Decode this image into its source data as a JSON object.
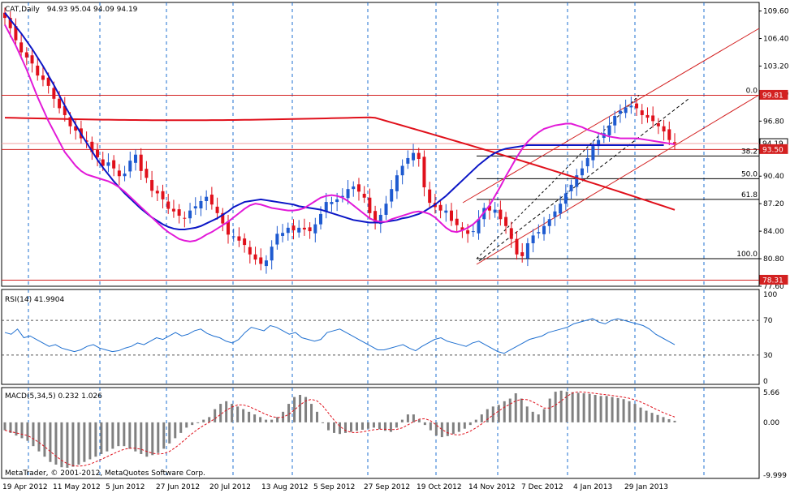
{
  "header": {
    "symbol": "CAT,Daily",
    "ohlc": "94.93 95.04 94.09 94.19"
  },
  "price_axis": {
    "ticks": [
      "109.60",
      "106.40",
      "103.20",
      "100.00",
      "96.80",
      "93.60",
      "90.40",
      "87.20",
      "84.00",
      "80.80",
      "77.60"
    ],
    "tags": [
      {
        "text": "99.81",
        "value": 99.81
      },
      {
        "text": "94.19",
        "value": 94.19
      },
      {
        "text": "93.50",
        "value": 93.5
      },
      {
        "text": "78.31",
        "value": 78.31
      }
    ]
  },
  "fib_levels": [
    {
      "label": "0.0",
      "value": 99.81
    },
    {
      "label": "38.2",
      "value": 92.75
    },
    {
      "label": "50.0",
      "value": 90.1
    },
    {
      "label": "61.8",
      "value": 87.7
    },
    {
      "label": "100.0",
      "value": 80.8
    }
  ],
  "rsi": {
    "label": "RSI(14) 41.9904",
    "ticks": [
      "100",
      "70",
      "30",
      "0"
    ],
    "values": [
      56,
      54,
      60,
      50,
      52,
      48,
      44,
      40,
      42,
      38,
      36,
      34,
      36,
      40,
      42,
      38,
      36,
      34,
      35,
      38,
      40,
      44,
      42,
      46,
      50,
      48,
      52,
      56,
      52,
      54,
      58,
      60,
      55,
      52,
      50,
      46,
      44,
      48,
      56,
      62,
      60,
      58,
      64,
      62,
      58,
      54,
      56,
      50,
      48,
      46,
      48,
      56,
      58,
      60,
      56,
      52,
      48,
      44,
      40,
      36,
      36,
      38,
      40,
      42,
      38,
      35,
      40,
      44,
      48,
      50,
      46,
      44,
      42,
      40,
      44,
      46,
      42,
      38,
      34,
      32,
      36,
      40,
      44,
      48,
      50,
      52,
      56,
      58,
      60,
      62,
      66,
      68,
      70,
      72,
      68,
      66,
      70,
      72,
      70,
      68,
      66,
      64,
      60,
      54,
      50,
      46,
      42
    ]
  },
  "macd": {
    "label": "MACD(5,34,5) 0.232 1.026",
    "ticks": [
      "5.66",
      "0.00",
      "-9.999"
    ],
    "values": [
      -1.5,
      -2,
      -2.5,
      -3,
      -3.5,
      -4.5,
      -5.5,
      -6.5,
      -7.5,
      -8,
      -8.5,
      -8.6,
      -8.4,
      -8,
      -7.5,
      -7,
      -6.5,
      -6,
      -5.5,
      -5,
      -4.5,
      -4.5,
      -5,
      -5.5,
      -6,
      -6.5,
      -6.2,
      -5.8,
      -5,
      -4,
      -3,
      -2,
      -1,
      -0.5,
      0,
      0.5,
      1,
      2.5,
      3.5,
      4,
      3.5,
      3,
      2.5,
      2,
      1.5,
      1,
      0.5,
      0.5,
      1,
      2,
      3.5,
      4.8,
      5.2,
      4.8,
      3.5,
      2,
      0,
      -1.5,
      -2,
      -2.2,
      -2,
      -1.8,
      -1.6,
      -1.4,
      -1.2,
      -1,
      -1.3,
      -1.6,
      -1.8,
      -1,
      0.5,
      1.5,
      1.5,
      0.5,
      -0.5,
      -1.5,
      -2.5,
      -2.8,
      -2.6,
      -2.2,
      -1.8,
      -1.2,
      -0.5,
      0.5,
      1.5,
      2.5,
      3,
      3.3,
      4,
      4.5,
      5.5,
      4.5,
      3,
      2,
      1.5,
      2.5,
      4.5,
      5.8,
      6,
      5.8,
      5.7,
      5.6,
      5.5,
      5.4,
      5.2,
      5,
      5,
      4.8,
      4.6,
      4.4,
      4,
      3.5,
      2.8,
      2.2,
      1.8,
      1.4,
      1,
      0.6,
      0.3
    ]
  },
  "dates": [
    "19 Apr 2012",
    "11 May 2012",
    "5 Jun 2012",
    "27 Jun 2012",
    "20 Jul 2012",
    "13 Aug 2012",
    "5 Sep 2012",
    "27 Sep 2012",
    "19 Oct 2012",
    "14 Nov 2012",
    "7 Dec 2012",
    "4 Jan 2013",
    "29 Jan 2013"
  ],
  "footer": "MetaTrader, © 2001-2012, MetaQuotes Software Corp.",
  "colors": {
    "bull": "#1e5ad0",
    "bear": "#e0101b",
    "ma_fast": "#e219d8",
    "ma_mid": "#0b16c6",
    "ma_slow": "#e0101b",
    "rsi": "#1e6fd0",
    "grid": "#1e6fd0",
    "hline": "#d32020"
  },
  "chart_data": {
    "type": "line",
    "title": "CAT,Daily",
    "close": [
      108.8,
      107.6,
      106.2,
      104.8,
      104.2,
      103.5,
      102.1,
      101.6,
      100.9,
      99.4,
      98.3,
      97.5,
      96.2,
      95.7,
      94.8,
      94.4,
      93.2,
      92.6,
      91.6,
      92.0,
      91.3,
      90.4,
      90.7,
      92.2,
      92.9,
      91.0,
      90.2,
      88.7,
      88.4,
      87.7,
      86.6,
      86.3,
      85.8,
      85.5,
      86.4,
      86.9,
      87.5,
      88.0,
      87.1,
      86.1,
      84.9,
      83.6,
      83.4,
      82.9,
      82.4,
      81.3,
      80.7,
      80.2,
      80.6,
      82.2,
      83.7,
      83.8,
      84.4,
      84.1,
      84.4,
      84.2,
      84.0,
      84.8,
      86.0,
      87.4,
      87.4,
      87.7,
      88.1,
      88.9,
      89.2,
      88.6,
      87.9,
      86.1,
      85.1,
      85.9,
      87.2,
      88.9,
      90.5,
      91.6,
      92.5,
      93.1,
      92.4,
      89.1,
      87.3,
      86.8,
      86.4,
      86.4,
      85.2,
      84.7,
      84.1,
      83.7,
      84.0,
      85.4,
      86.7,
      86.4,
      86.5,
      85.4,
      84.6,
      83.1,
      81.3,
      81.1,
      82.6,
      83.5,
      83.9,
      84.6,
      85.4,
      86.3,
      87.2,
      88.4,
      89.4,
      90.5,
      91.3,
      92.5,
      93.9,
      94.6,
      95.4,
      96.3,
      97.4,
      98.0,
      98.4,
      98.6,
      98.3,
      97.5,
      97.2,
      96.8,
      96.2,
      95.6,
      94.6,
      94.19
    ],
    "ma_fast": [
      108.0,
      106.8,
      105.6,
      104.2,
      102.8,
      101.2,
      99.6,
      98.2,
      96.8,
      95.6,
      94.4,
      93.2,
      92.4,
      91.6,
      91.0,
      90.6,
      90.4,
      90.2,
      90.0,
      89.8,
      89.5,
      89.1,
      88.6,
      88.0,
      87.4,
      86.8,
      86.2,
      85.6,
      85.0,
      84.4,
      83.9,
      83.5,
      83.1,
      82.9,
      82.8,
      82.9,
      83.2,
      83.6,
      83.9,
      84.3,
      84.7,
      85.1,
      85.6,
      86.1,
      86.6,
      87.0,
      87.2,
      87.1,
      86.9,
      86.7,
      86.6,
      86.5,
      86.4,
      86.4,
      86.5,
      86.7,
      87.1,
      87.5,
      87.9,
      88.1,
      88.2,
      88.1,
      87.9,
      87.5,
      87.0,
      86.5,
      86.0,
      85.5,
      85.2,
      85.1,
      85.1,
      85.4,
      85.6,
      85.8,
      86.0,
      86.2,
      86.3,
      86.2,
      86.0,
      85.6,
      85.0,
      84.4,
      84.0,
      83.9,
      84.1,
      84.4,
      84.8,
      85.4,
      86.2,
      87.0,
      88.1,
      89.2,
      90.4,
      91.5,
      92.6,
      93.6,
      94.4,
      95.0,
      95.5,
      95.9,
      96.1,
      96.3,
      96.4,
      96.5,
      96.5,
      96.3,
      96.1,
      95.8,
      95.6,
      95.4,
      95.2,
      95.0,
      94.9,
      94.8,
      94.8,
      94.8,
      94.8,
      94.7,
      94.6,
      94.5,
      94.4,
      94.3,
      94.2,
      94.1
    ],
    "ma_mid": [
      109.4,
      108.6,
      107.8,
      107.0,
      106.1,
      105.2,
      104.2,
      103.2,
      102.1,
      101.0,
      99.8,
      98.6,
      97.5,
      96.4,
      95.3,
      94.3,
      93.3,
      92.3,
      91.4,
      90.6,
      89.8,
      89.1,
      88.4,
      87.8,
      87.2,
      86.6,
      86.1,
      85.6,
      85.2,
      84.8,
      84.5,
      84.3,
      84.2,
      84.2,
      84.3,
      84.4,
      84.6,
      84.9,
      85.2,
      85.5,
      85.9,
      86.3,
      86.8,
      87.1,
      87.4,
      87.5,
      87.6,
      87.7,
      87.6,
      87.5,
      87.4,
      87.3,
      87.2,
      87.1,
      86.9,
      86.8,
      86.7,
      86.6,
      86.5,
      86.3,
      86.1,
      85.9,
      85.7,
      85.5,
      85.3,
      85.2,
      85.1,
      85.0,
      85.0,
      85.0,
      85.1,
      85.2,
      85.3,
      85.5,
      85.6,
      85.8,
      86.0,
      86.3,
      86.7,
      87.1,
      87.6,
      88.1,
      88.7,
      89.3,
      89.9,
      90.5,
      91.1,
      91.7,
      92.2,
      92.7,
      93.1,
      93.4,
      93.6,
      93.7,
      93.8,
      93.9,
      94.0,
      94.0,
      94.0,
      94.0,
      94.0,
      94.0,
      94.0,
      94.0,
      94.0,
      94.0,
      94.0,
      94.0,
      94.0,
      94.0,
      94.0,
      94.0,
      94.0,
      94.0,
      94.0,
      94.0,
      94.0,
      94.0,
      94.0,
      94.0,
      94.0,
      94.0
    ]
  }
}
